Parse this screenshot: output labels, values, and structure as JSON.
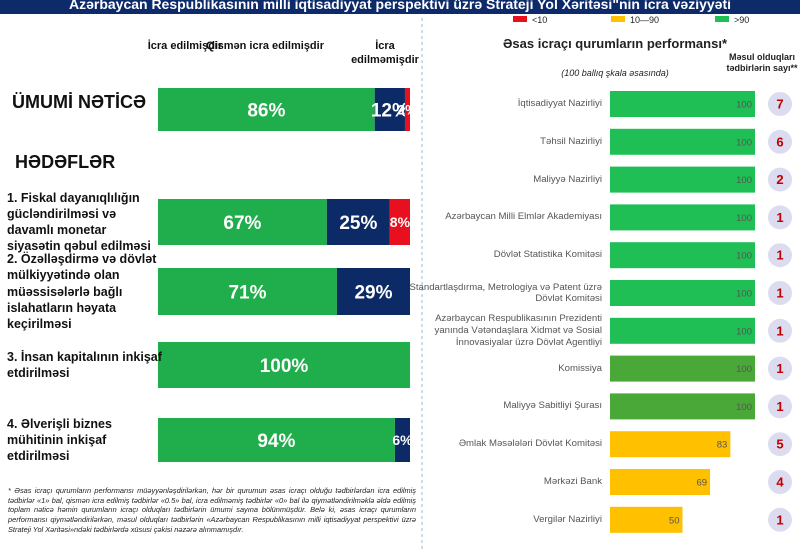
{
  "title": "Azərbaycan Respublikasının milli iqtisadiyyat perspektivi üzrə Strateji Yol Xəritəsi\"nin icra vəziyyəti",
  "footnote": "* Əsas icraçı qurumların performansı müəyyənləşdirilərkən, hər bir qurumun əsas icraçı olduğu tədbirlərdən icra edilmiş tədbirlər «1» bal, qismən icra edilmiş tədbirlər «0.5» bal, icra edilməmiş tədbirlər «0» bal ilə qiymətləndirilməklə əldə edilmiş toplam nəticə həmin qurumların icraçı olduqları tədbirlərin ümumi sayına bölünmüşdür. Belə ki, əsas icraçı qurumların performansı qiymətləndirilərkən, məsul olduqları tədbirlərin «Azərbaycan Respublikasının milli iqtisadiyyat perspektivi üzrə Strateji Yol Xəritəsi»ndəki tədbirlərdə xüsusi çəkisi nəzərə alınmamışdır.",
  "chart_data": [
    {
      "type": "stacked-bar",
      "orientation": "horizontal",
      "section_label": "HƏDƏFLƏR",
      "categories": [
        "ÜMUMİ NƏTİCƏ",
        "1. Fiskal dayanıqlılığın gücləndirilməsi və davamlı monetar siyasətin qəbul edilməsi",
        "2. Özəlləşdirmə və dövlət mülkiyyətində olan müəssisələrlə bağlı islahatların həyata keçirilməsi",
        "3. İnsan kapitalının inkişaf etdirilməsi",
        "4. Əlverişli biznes mühitinin inkişaf etdirilməsi"
      ],
      "xlim": [
        0,
        100
      ],
      "series": [
        {
          "name": "İcra edilmişdir",
          "color": "#1fae4b",
          "values": [
            86,
            67,
            71,
            100,
            94
          ],
          "value_labels": [
            "86%",
            "67%",
            "71%",
            "100%",
            "94%"
          ]
        },
        {
          "name": "Qismən icra edilmişdir",
          "color": "#0b2a66",
          "values": [
            12,
            25,
            29,
            null,
            6
          ],
          "value_labels": [
            "12%",
            "25%",
            "29%",
            null,
            "6%"
          ]
        },
        {
          "name": "İcra edilməmişdir",
          "color": "#e8101e",
          "values": [
            2,
            8,
            null,
            null,
            null
          ],
          "value_labels": [
            "2%",
            "8%",
            null,
            null,
            null
          ]
        }
      ]
    },
    {
      "type": "bar",
      "orientation": "horizontal",
      "title": "Əsas icraçı qurumların performansı*",
      "subtitle": "(100 ballıq şkala əsasında)",
      "count_title": "Məsul olduqları tədbirlərin sayı**",
      "legend": [
        {
          "name": "<10",
          "color": "#e8101e"
        },
        {
          "name": "10—90",
          "color": "#ffc000"
        },
        {
          "name": ">90",
          "color": "#1fbf55"
        }
      ],
      "categories": [
        "İqtisadiyyat Nazirliyi",
        "Təhsil Nazirliyi",
        "Maliyyə Nazirliyi",
        "Azərbaycan Milli Elmlər Akademiyası",
        "Dövlət Statistika Komitəsi",
        "Standartlaşdırma, Metrologiya və Patent üzrə Dövlət Komitəsi",
        "Azərbaycan Respublikasının Prezidenti yanında Vətəndaşlara Xidmət və Sosial İnnovasiyalar üzrə Dövlət Agentliyi",
        "Komissiya",
        "Maliyyə Sabitliyi Şurası",
        "Əmlak Məsələləri Dövlət Komitəsi",
        "Mərkəzi Bank",
        "Vergilər Nazirliyi"
      ],
      "values": [
        100,
        100,
        100,
        100,
        100,
        100,
        100,
        100,
        100,
        83,
        69,
        50
      ],
      "colors": [
        "#1fbf55",
        "#1fbf55",
        "#1fbf55",
        "#1fbf55",
        "#1fbf55",
        "#1fbf55",
        "#1fbf55",
        "#4aa838",
        "#4aa838",
        "#ffc000",
        "#ffc000",
        "#ffc000"
      ],
      "counts": [
        7,
        6,
        2,
        1,
        1,
        1,
        1,
        1,
        1,
        5,
        4,
        1
      ],
      "xlim": [
        0,
        100
      ]
    }
  ]
}
